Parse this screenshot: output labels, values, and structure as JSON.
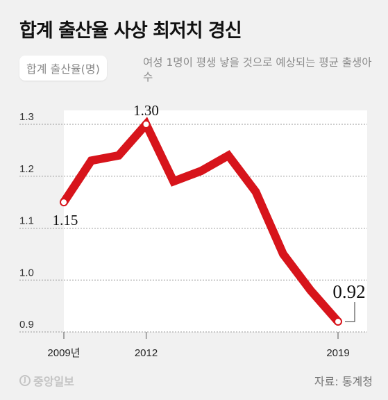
{
  "header": {
    "title": "합계 출산율 사상 최저치 경신",
    "series_label": "합계 출산율(명)",
    "description": "여성 1명이 평생 낳을 것으로 예상되는 평균 출생아 수"
  },
  "footer": {
    "logo_text": "중앙일보",
    "source": "자료: 통계청"
  },
  "colors": {
    "line": "#d7141b",
    "background": "#f1f1f1",
    "plot_area": "#ffffff"
  },
  "chart_data": {
    "type": "line",
    "title": "합계 출산율 사상 최저치 경신",
    "ylabel": "합계 출산율(명)",
    "x": [
      2009,
      2010,
      2011,
      2012,
      2013,
      2014,
      2015,
      2016,
      2017,
      2018,
      2019
    ],
    "values": [
      1.15,
      1.23,
      1.24,
      1.3,
      1.19,
      1.21,
      1.24,
      1.17,
      1.05,
      0.98,
      0.92
    ],
    "ylim": [
      0.9,
      1.3
    ],
    "yticks": [
      "1.3",
      "1.2",
      "1.1",
      "1.0",
      "0.9"
    ],
    "xticks": [
      {
        "x": 2009,
        "label": "2009년"
      },
      {
        "x": 2012,
        "label": "2012"
      },
      {
        "x": 2019,
        "label": "2019"
      }
    ],
    "annotations": [
      {
        "x": 2009,
        "label": "1.15"
      },
      {
        "x": 2012,
        "label": "1.30"
      },
      {
        "x": 2019,
        "label": "0.92"
      }
    ],
    "grid": "horizontal dashed"
  }
}
